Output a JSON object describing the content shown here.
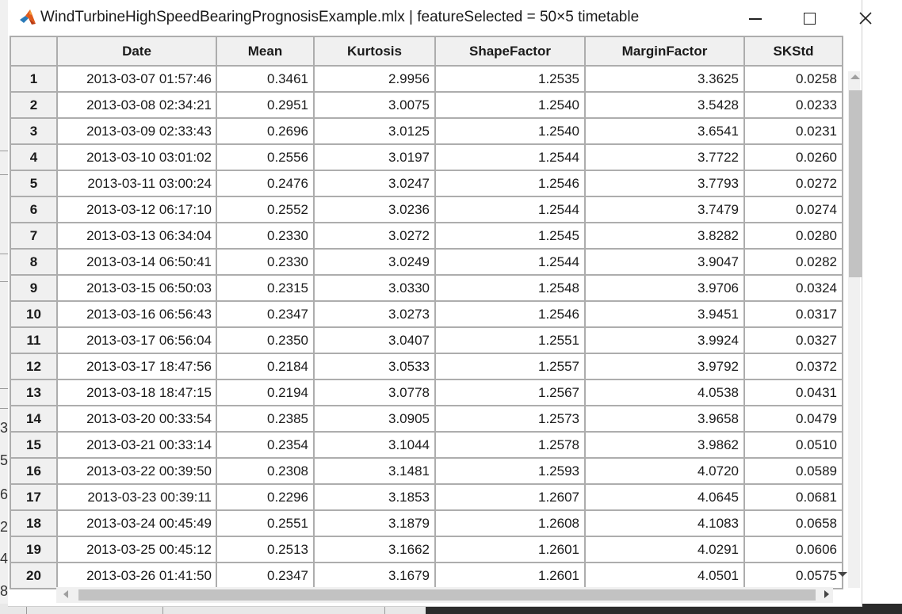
{
  "window": {
    "title": "WindTurbineHighSpeedBearingPrognosisExample.mlx | featureSelected = 50×5 timetable",
    "minimize_icon": "minimize-icon",
    "maximize_icon": "maximize-icon",
    "close_icon": "close-icon",
    "app_icon": "matlab-icon"
  },
  "background": {
    "left_digits": [
      "3",
      "5",
      "6",
      "2",
      "4",
      "8"
    ]
  },
  "table": {
    "columns": [
      "Date",
      "Mean",
      "Kurtosis",
      "ShapeFactor",
      "MarginFactor",
      "SKStd"
    ],
    "rows": [
      {
        "n": "1",
        "date": "2013-03-07 01:57:46",
        "mean": "0.3461",
        "kurt": "2.9956",
        "shape": "1.2535",
        "margin": "3.3625",
        "sk": "0.0258"
      },
      {
        "n": "2",
        "date": "2013-03-08 02:34:21",
        "mean": "0.2951",
        "kurt": "3.0075",
        "shape": "1.2540",
        "margin": "3.5428",
        "sk": "0.0233"
      },
      {
        "n": "3",
        "date": "2013-03-09 02:33:43",
        "mean": "0.2696",
        "kurt": "3.0125",
        "shape": "1.2540",
        "margin": "3.6541",
        "sk": "0.0231"
      },
      {
        "n": "4",
        "date": "2013-03-10 03:01:02",
        "mean": "0.2556",
        "kurt": "3.0197",
        "shape": "1.2544",
        "margin": "3.7722",
        "sk": "0.0260"
      },
      {
        "n": "5",
        "date": "2013-03-11 03:00:24",
        "mean": "0.2476",
        "kurt": "3.0247",
        "shape": "1.2546",
        "margin": "3.7793",
        "sk": "0.0272"
      },
      {
        "n": "6",
        "date": "2013-03-12 06:17:10",
        "mean": "0.2552",
        "kurt": "3.0236",
        "shape": "1.2544",
        "margin": "3.7479",
        "sk": "0.0274"
      },
      {
        "n": "7",
        "date": "2013-03-13 06:34:04",
        "mean": "0.2330",
        "kurt": "3.0272",
        "shape": "1.2545",
        "margin": "3.8282",
        "sk": "0.0280"
      },
      {
        "n": "8",
        "date": "2013-03-14 06:50:41",
        "mean": "0.2330",
        "kurt": "3.0249",
        "shape": "1.2544",
        "margin": "3.9047",
        "sk": "0.0282"
      },
      {
        "n": "9",
        "date": "2013-03-15 06:50:03",
        "mean": "0.2315",
        "kurt": "3.0330",
        "shape": "1.2548",
        "margin": "3.9706",
        "sk": "0.0324"
      },
      {
        "n": "10",
        "date": "2013-03-16 06:56:43",
        "mean": "0.2347",
        "kurt": "3.0273",
        "shape": "1.2546",
        "margin": "3.9451",
        "sk": "0.0317"
      },
      {
        "n": "11",
        "date": "2013-03-17 06:56:04",
        "mean": "0.2350",
        "kurt": "3.0407",
        "shape": "1.2551",
        "margin": "3.9924",
        "sk": "0.0327"
      },
      {
        "n": "12",
        "date": "2013-03-17 18:47:56",
        "mean": "0.2184",
        "kurt": "3.0533",
        "shape": "1.2557",
        "margin": "3.9792",
        "sk": "0.0372"
      },
      {
        "n": "13",
        "date": "2013-03-18 18:47:15",
        "mean": "0.2194",
        "kurt": "3.0778",
        "shape": "1.2567",
        "margin": "4.0538",
        "sk": "0.0431"
      },
      {
        "n": "14",
        "date": "2013-03-20 00:33:54",
        "mean": "0.2385",
        "kurt": "3.0905",
        "shape": "1.2573",
        "margin": "3.9658",
        "sk": "0.0479"
      },
      {
        "n": "15",
        "date": "2013-03-21 00:33:14",
        "mean": "0.2354",
        "kurt": "3.1044",
        "shape": "1.2578",
        "margin": "3.9862",
        "sk": "0.0510"
      },
      {
        "n": "16",
        "date": "2013-03-22 00:39:50",
        "mean": "0.2308",
        "kurt": "3.1481",
        "shape": "1.2593",
        "margin": "4.0720",
        "sk": "0.0589"
      },
      {
        "n": "17",
        "date": "2013-03-23 00:39:11",
        "mean": "0.2296",
        "kurt": "3.1853",
        "shape": "1.2607",
        "margin": "4.0645",
        "sk": "0.0681"
      },
      {
        "n": "18",
        "date": "2013-03-24 00:45:49",
        "mean": "0.2551",
        "kurt": "3.1879",
        "shape": "1.2608",
        "margin": "4.1083",
        "sk": "0.0658"
      },
      {
        "n": "19",
        "date": "2013-03-25 00:45:12",
        "mean": "0.2513",
        "kurt": "3.1662",
        "shape": "1.2601",
        "margin": "4.0291",
        "sk": "0.0606"
      },
      {
        "n": "20",
        "date": "2013-03-26 01:41:50",
        "mean": "0.2347",
        "kurt": "3.1679",
        "shape": "1.2601",
        "margin": "4.0501",
        "sk": "0.0575"
      }
    ]
  },
  "scrollbars": {
    "up_icon": "scroll-up-arrow-icon",
    "down_icon": "scroll-down-arrow-icon",
    "left_icon": "scroll-left-arrow-icon",
    "right_icon": "scroll-right-arrow-icon"
  }
}
